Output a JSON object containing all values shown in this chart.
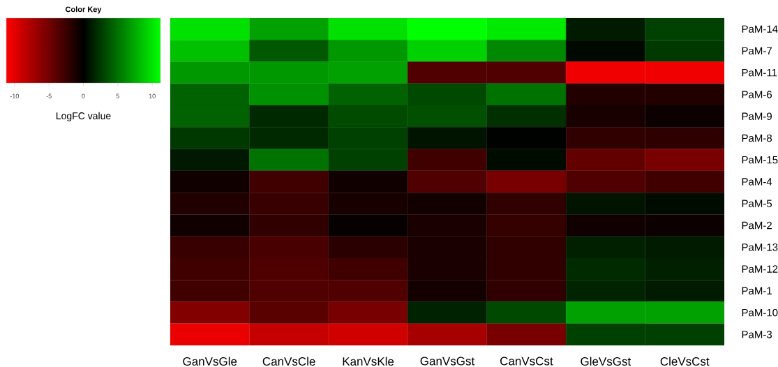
{
  "chart_data": {
    "type": "heatmap",
    "legend_title": "Color Key",
    "clabel": "LogFC value",
    "categories": [
      "GanVsGle",
      "CanVsCle",
      "KanVsKle",
      "GanVsGst",
      "CanVsCst",
      "GleVsGst",
      "CleVsCst"
    ],
    "y_categories": [
      "PaM-14",
      "PaM-7",
      "PaM-11",
      "PaM-6",
      "PaM-9",
      "PaM-8",
      "PaM-15",
      "PaM-4",
      "PaM-5",
      "PaM-2",
      "PaM-13",
      "PaM-12",
      "PaM-1",
      "PaM-10",
      "PaM-3"
    ],
    "cells": [
      [
        9.9,
        7.1,
        9.9,
        11.2,
        10.3,
        1.2,
        2.8
      ],
      [
        8.5,
        3.9,
        6.7,
        9.2,
        6.0,
        0.4,
        2.5
      ],
      [
        6.7,
        6.7,
        7.1,
        -3.5,
        -3.5,
        -10.6,
        -10.6
      ],
      [
        4.3,
        6.4,
        4.3,
        3.2,
        5.0,
        -1.5,
        -1.5
      ],
      [
        4.3,
        1.8,
        3.3,
        3.5,
        2.1,
        -1.1,
        -0.5
      ],
      [
        2.5,
        1.8,
        2.8,
        0.9,
        0.1,
        -2.1,
        -2.0
      ],
      [
        1.1,
        5.0,
        2.8,
        -2.8,
        0.5,
        -4.3,
        -5.3
      ],
      [
        -0.7,
        -2.8,
        -0.7,
        -3.5,
        -5.3,
        -3.5,
        -2.8
      ],
      [
        -1.4,
        -2.5,
        -1.1,
        -0.8,
        -2.1,
        0.9,
        0.5
      ],
      [
        -0.7,
        -2.1,
        -0.3,
        -1.2,
        -2.3,
        -0.7,
        -0.5
      ],
      [
        -2.5,
        -3.2,
        -1.9,
        -1.2,
        -2.1,
        1.4,
        1.2
      ],
      [
        -2.8,
        -3.4,
        -2.8,
        -1.2,
        -2.1,
        1.9,
        1.4
      ],
      [
        -2.8,
        -3.5,
        -3.5,
        -0.9,
        -2.1,
        1.6,
        1.2
      ],
      [
        -5.7,
        -3.9,
        -5.3,
        1.5,
        3.2,
        7.1,
        7.1
      ],
      [
        -10.3,
        -8.7,
        -9.2,
        -7.3,
        -5.3,
        2.8,
        2.8
      ]
    ],
    "clim": [
      -11.2,
      11.2
    ],
    "cticks": [
      -10,
      -5,
      0,
      5,
      10
    ]
  }
}
